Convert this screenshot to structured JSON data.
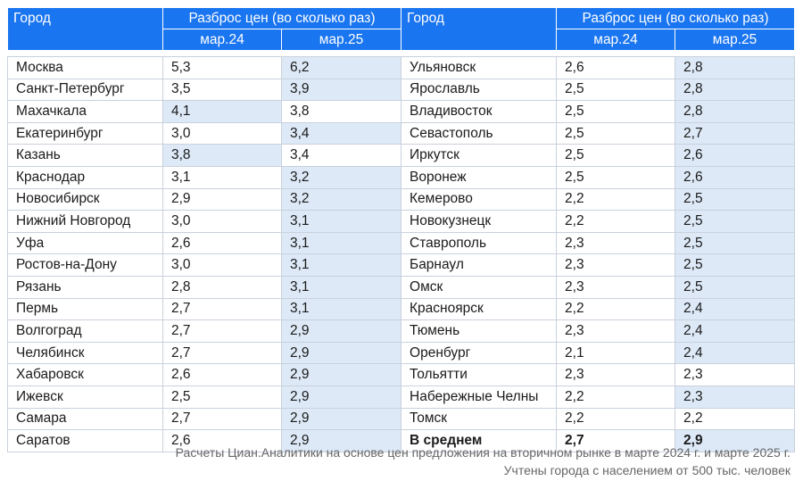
{
  "header": {
    "city": "Город",
    "spread": "Разброс цен (во сколько раз)",
    "col_prev": "мар.24",
    "col_curr": "мар.25"
  },
  "left_rows": [
    {
      "city": "Москва",
      "m24": "5,3",
      "m25": "6,2",
      "h24": false,
      "h25": true
    },
    {
      "city": "Санкт-Петербург",
      "m24": "3,5",
      "m25": "3,9",
      "h24": false,
      "h25": true
    },
    {
      "city": "Махачкала",
      "m24": "4,1",
      "m25": "3,8",
      "h24": true,
      "h25": false
    },
    {
      "city": "Екатеринбург",
      "m24": "3,0",
      "m25": "3,4",
      "h24": false,
      "h25": true
    },
    {
      "city": "Казань",
      "m24": "3,8",
      "m25": "3,4",
      "h24": true,
      "h25": false
    },
    {
      "city": "Краснодар",
      "m24": "3,1",
      "m25": "3,2",
      "h24": false,
      "h25": true
    },
    {
      "city": "Новосибирск",
      "m24": "2,9",
      "m25": "3,2",
      "h24": false,
      "h25": true
    },
    {
      "city": "Нижний Новгород",
      "m24": "3,0",
      "m25": "3,1",
      "h24": false,
      "h25": true
    },
    {
      "city": "Уфа",
      "m24": "2,6",
      "m25": "3,1",
      "h24": false,
      "h25": true
    },
    {
      "city": "Ростов-на-Дону",
      "m24": "3,0",
      "m25": "3,1",
      "h24": false,
      "h25": true
    },
    {
      "city": "Рязань",
      "m24": "2,8",
      "m25": "3,1",
      "h24": false,
      "h25": true
    },
    {
      "city": "Пермь",
      "m24": "2,7",
      "m25": "3,1",
      "h24": false,
      "h25": true
    },
    {
      "city": "Волгоград",
      "m24": "2,7",
      "m25": "2,9",
      "h24": false,
      "h25": true
    },
    {
      "city": "Челябинск",
      "m24": "2,7",
      "m25": "2,9",
      "h24": false,
      "h25": true
    },
    {
      "city": "Хабаровск",
      "m24": "2,6",
      "m25": "2,9",
      "h24": false,
      "h25": true
    },
    {
      "city": "Ижевск",
      "m24": "2,5",
      "m25": "2,9",
      "h24": false,
      "h25": true
    },
    {
      "city": "Самара",
      "m24": "2,7",
      "m25": "2,9",
      "h24": false,
      "h25": true
    },
    {
      "city": "Саратов",
      "m24": "2,6",
      "m25": "2,9",
      "h24": false,
      "h25": true
    }
  ],
  "right_rows": [
    {
      "city": "Ульяновск",
      "m24": "2,6",
      "m25": "2,8",
      "h24": false,
      "h25": true
    },
    {
      "city": "Ярославль",
      "m24": "2,5",
      "m25": "2,8",
      "h24": false,
      "h25": true
    },
    {
      "city": "Владивосток",
      "m24": "2,5",
      "m25": "2,8",
      "h24": false,
      "h25": true
    },
    {
      "city": "Севастополь",
      "m24": "2,5",
      "m25": "2,7",
      "h24": false,
      "h25": true
    },
    {
      "city": "Иркутск",
      "m24": "2,5",
      "m25": "2,6",
      "h24": false,
      "h25": true
    },
    {
      "city": "Воронеж",
      "m24": "2,5",
      "m25": "2,6",
      "h24": false,
      "h25": true
    },
    {
      "city": "Кемерово",
      "m24": "2,2",
      "m25": "2,5",
      "h24": false,
      "h25": true
    },
    {
      "city": "Новокузнецк",
      "m24": "2,2",
      "m25": "2,5",
      "h24": false,
      "h25": true
    },
    {
      "city": "Ставрополь",
      "m24": "2,3",
      "m25": "2,5",
      "h24": false,
      "h25": true
    },
    {
      "city": "Барнаул",
      "m24": "2,3",
      "m25": "2,5",
      "h24": false,
      "h25": true
    },
    {
      "city": "Омск",
      "m24": "2,3",
      "m25": "2,5",
      "h24": false,
      "h25": true
    },
    {
      "city": "Красноярск",
      "m24": "2,2",
      "m25": "2,4",
      "h24": false,
      "h25": true
    },
    {
      "city": "Тюмень",
      "m24": "2,3",
      "m25": "2,4",
      "h24": false,
      "h25": true
    },
    {
      "city": "Оренбург",
      "m24": "2,1",
      "m25": "2,4",
      "h24": false,
      "h25": true
    },
    {
      "city": "Тольятти",
      "m24": "2,3",
      "m25": "2,3",
      "h24": false,
      "h25": false
    },
    {
      "city": "Набережные Челны",
      "m24": "2,2",
      "m25": "2,3",
      "h24": false,
      "h25": true
    },
    {
      "city": "Томск",
      "m24": "2,2",
      "m25": "2,2",
      "h24": false,
      "h25": false
    },
    {
      "city": "В среднем",
      "m24": "2,7",
      "m25": "2,9",
      "h24": false,
      "h25": true,
      "bold": true
    }
  ],
  "notes": {
    "line1": "Расчеты Циан.Аналитики на основе цен предложения на вторичном рынке в марте 2024 г. и марте 2025 г.",
    "line2": "Учтены города с населением от 500 тыс. человек"
  }
}
